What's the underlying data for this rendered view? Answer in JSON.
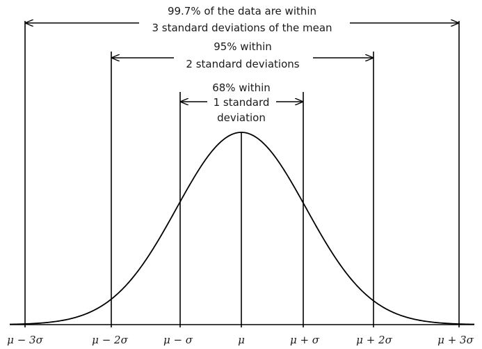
{
  "annotations": {
    "three_sd": {
      "line1": "99.7% of the data are within",
      "line2": "3 standard deviations of the mean"
    },
    "two_sd": {
      "line1": "95% within",
      "line2": "2 standard deviations"
    },
    "one_sd": {
      "line1": "68% within",
      "line2": "1 standard",
      "line3": "deviation"
    }
  },
  "axis_labels": {
    "mu_minus_3sigma": "μ − 3σ",
    "mu_minus_2sigma": "μ − 2σ",
    "mu_minus_sigma": "μ − σ",
    "mu": "μ",
    "mu_plus_sigma": "μ + σ",
    "mu_plus_2sigma": "μ + 2σ",
    "mu_plus_3sigma": "μ + 3σ"
  }
}
